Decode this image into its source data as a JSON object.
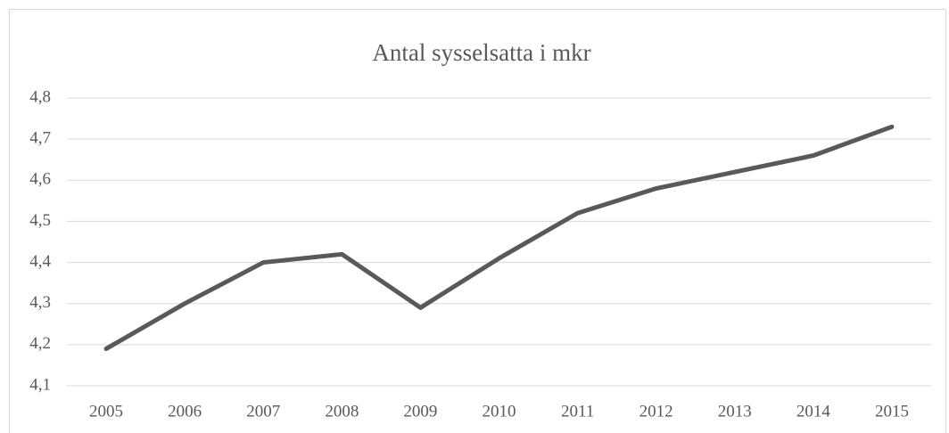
{
  "chart_data": {
    "type": "line",
    "title": "Antal sysselsatta i mkr",
    "categories": [
      "2005",
      "2006",
      "2007",
      "2008",
      "2009",
      "2010",
      "2011",
      "2012",
      "2013",
      "2014",
      "2015"
    ],
    "series": [
      {
        "name": "Antal sysselsatta",
        "color": "#595959",
        "values": [
          4.19,
          4.3,
          4.4,
          4.42,
          4.29,
          4.41,
          4.52,
          4.58,
          4.62,
          4.66,
          4.73
        ]
      }
    ],
    "ylim": [
      4.1,
      4.8
    ],
    "yticks": [
      {
        "value": 4.1,
        "label": "4,1"
      },
      {
        "value": 4.2,
        "label": "4,2"
      },
      {
        "value": 4.3,
        "label": "4,3"
      },
      {
        "value": 4.4,
        "label": "4,4"
      },
      {
        "value": 4.5,
        "label": "4,5"
      },
      {
        "value": 4.6,
        "label": "4,6"
      },
      {
        "value": 4.7,
        "label": "4,7"
      },
      {
        "value": 4.8,
        "label": "4,8"
      }
    ],
    "grid": true
  }
}
